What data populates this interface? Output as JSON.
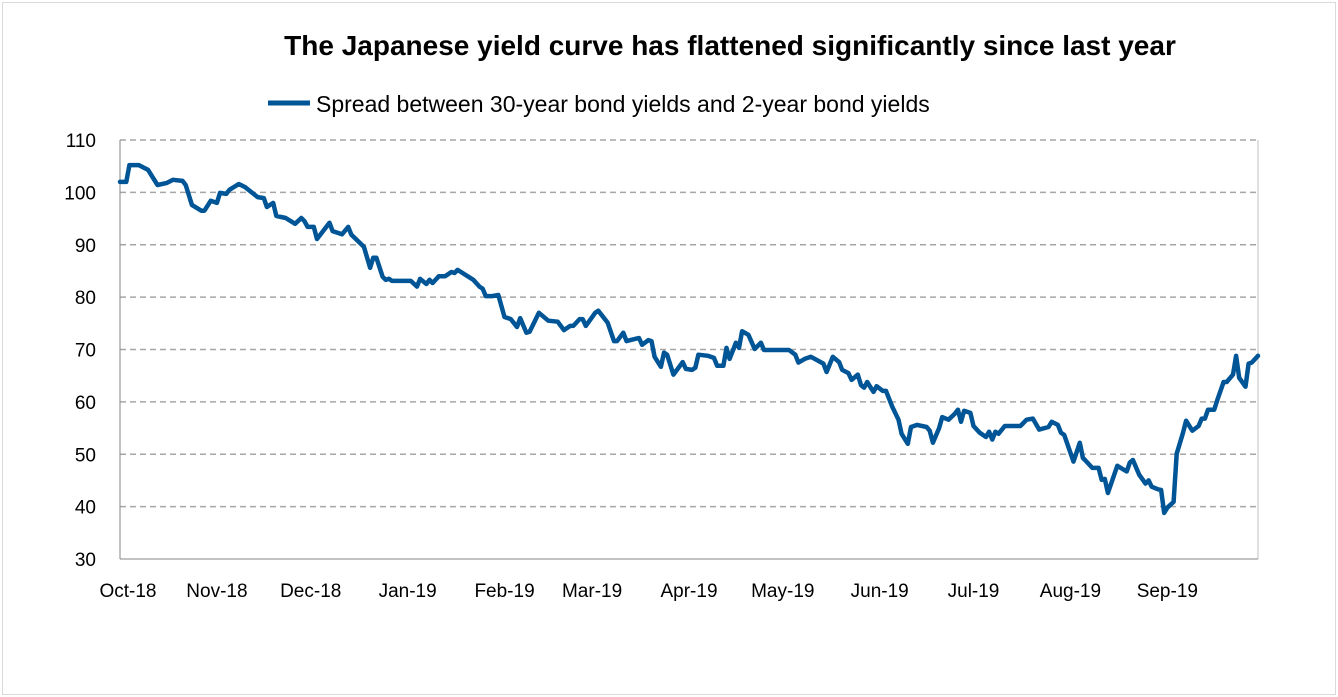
{
  "chart_data": {
    "type": "line",
    "title": "The Japanese yield curve has flattened significantly since last year",
    "xlabel": "",
    "ylabel": "",
    "x_unit": "days since 1 Oct 2018",
    "xlim": [
      0,
      364
    ],
    "ylim": [
      30,
      110
    ],
    "y_ticks": [
      30,
      40,
      50,
      60,
      70,
      80,
      90,
      100,
      110
    ],
    "x_ticks": [
      {
        "label": "Oct-18",
        "day": 0
      },
      {
        "label": "Nov-18",
        "day": 31
      },
      {
        "label": "Dec-18",
        "day": 61
      },
      {
        "label": "Jan-19",
        "day": 92
      },
      {
        "label": "Feb-19",
        "day": 123
      },
      {
        "label": "Mar-19",
        "day": 151
      },
      {
        "label": "Apr-19",
        "day": 182
      },
      {
        "label": "May-19",
        "day": 212
      },
      {
        "label": "Jun-19",
        "day": 243
      },
      {
        "label": "Jul-19",
        "day": 273
      },
      {
        "label": "Aug-19",
        "day": 304
      },
      {
        "label": "Sep-19",
        "day": 335
      }
    ],
    "grid": "horizontal dashed",
    "legend_position": "top",
    "series": [
      {
        "name": "Spread between 30-year bond yields and 2-year bond yields",
        "color": "#005596",
        "points": [
          [
            0,
            102
          ],
          [
            2,
            102
          ],
          [
            3,
            105.2
          ],
          [
            6,
            105.2
          ],
          [
            9,
            104.3
          ],
          [
            10,
            103.3
          ],
          [
            12,
            101.4
          ],
          [
            15,
            101.8
          ],
          [
            17,
            102.4
          ],
          [
            20,
            102.2
          ],
          [
            21,
            101.4
          ],
          [
            23,
            97.6
          ],
          [
            26,
            96.5
          ],
          [
            27,
            96.5
          ],
          [
            29,
            98.4
          ],
          [
            31,
            98
          ],
          [
            32,
            99.9
          ],
          [
            34,
            99.7
          ],
          [
            35,
            100.5
          ],
          [
            38,
            101.6
          ],
          [
            40,
            101
          ],
          [
            44,
            99.1
          ],
          [
            46,
            98.9
          ],
          [
            47,
            97.2
          ],
          [
            49,
            98
          ],
          [
            50,
            95.5
          ],
          [
            53,
            95.1
          ],
          [
            56,
            94
          ],
          [
            58,
            95.1
          ],
          [
            59,
            94.5
          ],
          [
            60,
            93.4
          ],
          [
            62,
            93.4
          ],
          [
            63,
            91.1
          ],
          [
            67,
            94.2
          ],
          [
            68,
            92.6
          ],
          [
            71,
            92
          ],
          [
            73,
            93.4
          ],
          [
            74,
            91.9
          ],
          [
            78,
            89.6
          ],
          [
            80,
            85.6
          ],
          [
            81,
            87.5
          ],
          [
            82,
            87.5
          ],
          [
            84,
            83.9
          ],
          [
            85,
            83.3
          ],
          [
            86,
            83.5
          ],
          [
            87,
            83.1
          ],
          [
            93,
            83.1
          ],
          [
            95,
            82
          ],
          [
            96,
            83.5
          ],
          [
            98,
            82.5
          ],
          [
            99,
            83.3
          ],
          [
            100,
            82.7
          ],
          [
            102,
            84
          ],
          [
            104,
            84
          ],
          [
            106,
            84.8
          ],
          [
            107,
            84.6
          ],
          [
            108,
            85.2
          ],
          [
            113,
            83.3
          ],
          [
            115,
            82
          ],
          [
            116,
            81.6
          ],
          [
            117,
            80.2
          ],
          [
            119,
            80.2
          ],
          [
            121,
            80.4
          ],
          [
            123,
            76.2
          ],
          [
            125,
            75.8
          ],
          [
            127,
            74.3
          ],
          [
            128,
            76
          ],
          [
            130,
            73.2
          ],
          [
            131,
            73.4
          ],
          [
            134,
            77
          ],
          [
            137,
            75.5
          ],
          [
            140,
            75.3
          ],
          [
            142,
            73.7
          ],
          [
            144,
            74.5
          ],
          [
            145,
            74.5
          ],
          [
            147,
            75.8
          ],
          [
            148,
            75.8
          ],
          [
            149,
            74.5
          ],
          [
            152,
            77
          ],
          [
            153,
            77.4
          ],
          [
            156,
            75.1
          ],
          [
            158,
            71.6
          ],
          [
            159,
            71.6
          ],
          [
            161,
            73.2
          ],
          [
            162,
            71.6
          ],
          [
            166,
            72.2
          ],
          [
            167,
            70.9
          ],
          [
            169,
            71.8
          ],
          [
            170,
            71.6
          ],
          [
            171,
            68.6
          ],
          [
            173,
            66.7
          ],
          [
            174,
            69.4
          ],
          [
            175,
            69
          ],
          [
            177,
            65.2
          ],
          [
            180,
            67.6
          ],
          [
            181,
            66.3
          ],
          [
            183,
            66.1
          ],
          [
            184,
            66.5
          ],
          [
            185,
            69
          ],
          [
            188,
            68.8
          ],
          [
            190,
            68.4
          ],
          [
            191,
            66.9
          ],
          [
            193,
            66.9
          ],
          [
            194,
            70.3
          ],
          [
            195,
            68.2
          ],
          [
            197,
            71.3
          ],
          [
            198,
            70.3
          ],
          [
            199,
            73.5
          ],
          [
            201,
            72.8
          ],
          [
            203,
            70.1
          ],
          [
            205,
            71.3
          ],
          [
            206,
            69.9
          ],
          [
            214,
            69.9
          ],
          [
            216,
            69
          ],
          [
            217,
            67.5
          ],
          [
            219,
            68.2
          ],
          [
            221,
            68.6
          ],
          [
            225,
            67.3
          ],
          [
            226,
            65.7
          ],
          [
            228,
            68.6
          ],
          [
            230,
            67.6
          ],
          [
            231,
            66.1
          ],
          [
            233,
            65.5
          ],
          [
            234,
            64.2
          ],
          [
            236,
            65.2
          ],
          [
            237,
            63.2
          ],
          [
            238,
            62.7
          ],
          [
            239,
            63.8
          ],
          [
            241,
            61.9
          ],
          [
            242,
            63
          ],
          [
            244,
            62.1
          ],
          [
            245,
            62.1
          ],
          [
            247,
            59.1
          ],
          [
            249,
            56.6
          ],
          [
            250,
            53.9
          ],
          [
            252,
            52
          ],
          [
            253,
            55.2
          ],
          [
            255,
            55.6
          ],
          [
            258,
            55.2
          ],
          [
            259,
            54.5
          ],
          [
            260,
            52.2
          ],
          [
            262,
            55
          ],
          [
            263,
            57.1
          ],
          [
            265,
            56.6
          ],
          [
            267,
            57.7
          ],
          [
            268,
            58.5
          ],
          [
            269,
            56.2
          ],
          [
            270,
            58.3
          ],
          [
            272,
            57.9
          ],
          [
            273,
            55.4
          ],
          [
            275,
            54.1
          ],
          [
            277,
            53.3
          ],
          [
            278,
            54.3
          ],
          [
            279,
            52.8
          ],
          [
            280,
            54.3
          ],
          [
            281,
            53.9
          ],
          [
            283,
            55.4
          ],
          [
            288,
            55.4
          ],
          [
            290,
            56.6
          ],
          [
            292,
            56.8
          ],
          [
            294,
            54.7
          ],
          [
            297,
            55.2
          ],
          [
            298,
            56.2
          ],
          [
            300,
            55.6
          ],
          [
            301,
            54.1
          ],
          [
            302,
            53.7
          ],
          [
            305,
            48.6
          ],
          [
            307,
            52.2
          ],
          [
            308,
            49.3
          ],
          [
            309,
            48.7
          ],
          [
            311,
            47.4
          ],
          [
            313,
            47.4
          ],
          [
            314,
            45.1
          ],
          [
            315,
            45.3
          ],
          [
            316,
            42.6
          ],
          [
            319,
            47.8
          ],
          [
            322,
            46.7
          ],
          [
            323,
            48.4
          ],
          [
            324,
            48.9
          ],
          [
            326,
            46.1
          ],
          [
            328,
            44.4
          ],
          [
            329,
            45
          ],
          [
            330,
            43.8
          ],
          [
            332,
            43.3
          ],
          [
            333,
            43.2
          ],
          [
            334,
            38.8
          ],
          [
            335,
            39.8
          ],
          [
            337,
            40.9
          ],
          [
            338,
            50.1
          ],
          [
            340,
            54.1
          ],
          [
            341,
            56.4
          ],
          [
            343,
            54.5
          ],
          [
            345,
            55.4
          ],
          [
            346,
            56.8
          ],
          [
            347,
            56.8
          ],
          [
            348,
            58.5
          ],
          [
            350,
            58.5
          ],
          [
            351,
            60.4
          ],
          [
            353,
            63.8
          ],
          [
            354,
            63.8
          ],
          [
            356,
            65.2
          ],
          [
            357,
            68.8
          ],
          [
            358,
            64.6
          ],
          [
            360,
            62.9
          ],
          [
            361,
            67.3
          ],
          [
            362,
            67.5
          ],
          [
            364,
            68.8
          ]
        ]
      }
    ]
  }
}
